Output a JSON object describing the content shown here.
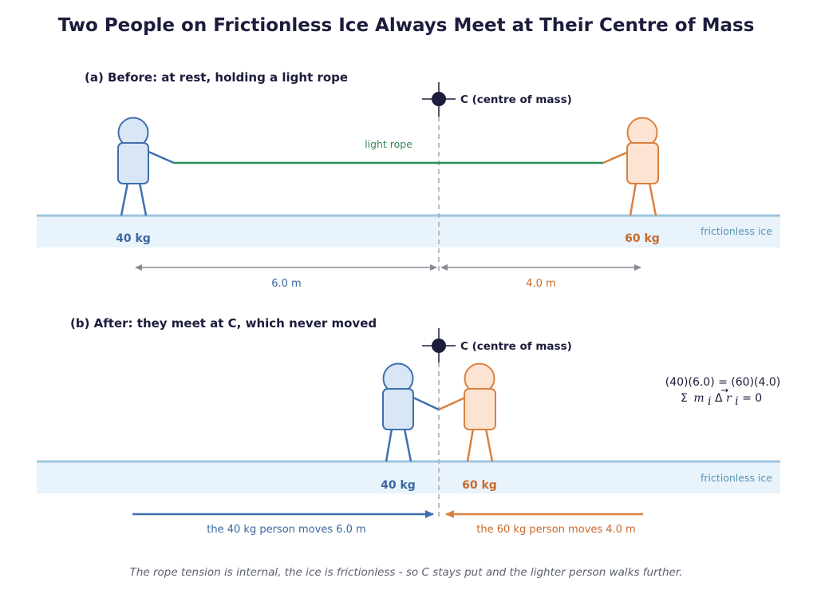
{
  "title": "Two People on Frictionless Ice Always Meet at Their Centre of Mass",
  "panel_a": {
    "label": "(a)  Before: at rest, holding a light rope",
    "cm_label": "C  (centre of mass)",
    "rope_label": "light rope",
    "mass_left": "40 kg",
    "mass_right": "60 kg",
    "ice_label": "frictionless ice",
    "dist_left": "6.0 m",
    "dist_right": "4.0 m"
  },
  "panel_b": {
    "label": "(b)  After: they meet at C, which never moved",
    "cm_label": "C  (centre of mass)",
    "mass_left": "40 kg",
    "mass_right": "60 kg",
    "ice_label": "frictionless ice",
    "move_left": "the 40 kg person moves 6.0 m",
    "move_right": "the 60 kg person moves 4.0 m",
    "equation_1": "(40)(6.0) = (60)(4.0)",
    "equation_2_prefix": "Σ",
    "equation_2_m": "m",
    "equation_2_sub_i": "i",
    "equation_2_delta": "Δ",
    "equation_2_r": "r",
    "equation_2_sub_i2": "i",
    "equation_2_suffix": " = 0"
  },
  "footer": "The rope tension is internal, the ice is frictionless - so C stays put and the lighter person walks further.",
  "colors": {
    "blue": "#3f6fae",
    "blue_fill": "#d9e6f5",
    "orange": "#d9813f",
    "orange_fill": "#fde3d1",
    "rope": "#2e8b57",
    "ice": "#e8f3fb",
    "ice_line": "#9fc6e0",
    "cm": "#1c1c3c"
  }
}
